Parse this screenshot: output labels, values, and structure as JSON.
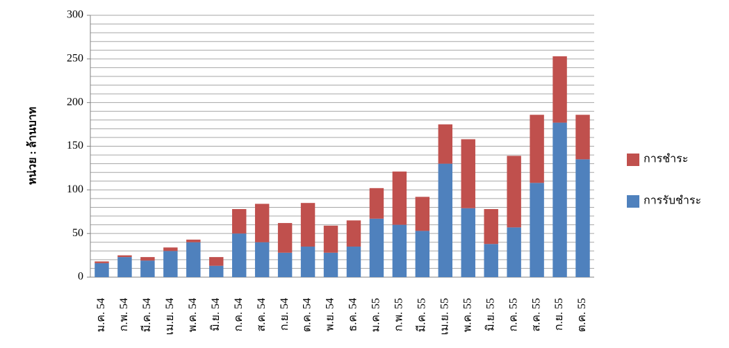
{
  "chart_data": {
    "type": "stacked_bar",
    "y_label": "หน่วย : ล้านบาท",
    "categories": [
      "ม.ค. 54",
      "ก.พ. 54",
      "มี.ค. 54",
      "เม.ย. 54",
      "พ.ค. 54",
      "มิ.ย. 54",
      "ก.ค. 54",
      "ส.ค. 54",
      "ก.ย. 54",
      "ต.ค. 54",
      "พ.ย. 54",
      "ธ.ค. 54",
      "ม.ค. 55",
      "ก.พ. 55",
      "มี.ค. 55",
      "เม.ย. 55",
      "พ.ค. 55",
      "มิ.ย. 55",
      "ก.ค. 55",
      "ส.ค. 55",
      "ก.ย. 55",
      "ต.ค. 55"
    ],
    "series": [
      {
        "name": "การรับชำระ",
        "color": "#4f81bd",
        "values": [
          16,
          23,
          19,
          30,
          40,
          13,
          50,
          40,
          28,
          35,
          28,
          35,
          67,
          60,
          53,
          130,
          79,
          38,
          57,
          108,
          177,
          135
        ]
      },
      {
        "name": "การชำระ",
        "color": "#c0504d",
        "values": [
          2,
          2,
          4,
          4,
          3,
          10,
          28,
          44,
          34,
          50,
          31,
          30,
          35,
          61,
          39,
          45,
          79,
          40,
          82,
          78,
          76,
          51
        ]
      }
    ],
    "ylim": [
      0,
      300
    ],
    "yticks": [
      0,
      50,
      100,
      150,
      200,
      250,
      300
    ],
    "ygrid": [
      10,
      20,
      30,
      40,
      50,
      60,
      70,
      80,
      90,
      100,
      110,
      120,
      130,
      140,
      150,
      160,
      170,
      180,
      190,
      200,
      210,
      220,
      230,
      240,
      250,
      260,
      270,
      280,
      290,
      300
    ],
    "legend": "right"
  }
}
